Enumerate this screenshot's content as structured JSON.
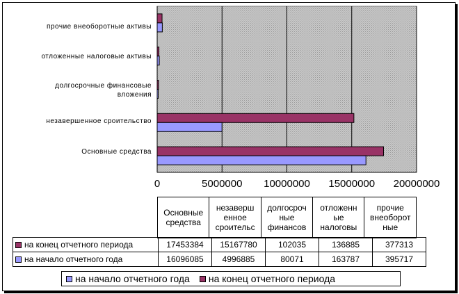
{
  "chart_data": {
    "type": "bar",
    "orientation": "horizontal",
    "categories": [
      "Основные средства",
      "незавершенное сроительство",
      "долгосрочные финансовые вложения",
      "отложенные налоговые активы",
      "прочие внеоборотные активы"
    ],
    "category_labels_display": [
      "Основные средства",
      "незавершенное сроительство",
      "долгосрочные финансовые вложения",
      "отложенные налоговые активы",
      "прочие внеоборотные активы"
    ],
    "table_headers": [
      "Основные средства",
      "незавершенное сроительс тво",
      "долгосрочные финансов ые вложения",
      "отложенные налоговые активы",
      "прочие внеоборотные активы"
    ],
    "series": [
      {
        "name": "на конец отчетного периода",
        "color": "#993366",
        "values": [
          17453384,
          15167780,
          102035,
          136885,
          377313
        ]
      },
      {
        "name": "на начало отчетного года",
        "color": "#9999FF",
        "values": [
          16096085,
          4996885,
          80071,
          163787,
          395717
        ]
      }
    ],
    "xlim": [
      0,
      20000000
    ],
    "xticks": [
      0,
      5000000,
      10000000,
      15000000,
      20000000
    ],
    "xtick_labels": [
      "0",
      "5000000",
      "10000000",
      "15000000",
      "20000000"
    ],
    "grid": true,
    "plot_background": "#c0c0c0",
    "legend_position": "bottom",
    "data_table": true
  },
  "table": {
    "headers": [
      "Основные средства",
      "незаверш енное сроительс",
      "долгосроч ные финансов",
      "отложенн ые налоговы",
      "прочие внеоборот ные"
    ],
    "rows": [
      {
        "name": "на конец отчетного периода",
        "values": [
          "17453384",
          "15167780",
          "102035",
          "136885",
          "377313"
        ]
      },
      {
        "name": "на начало отчетного года",
        "values": [
          "16096085",
          "4996885",
          "80071",
          "163787",
          "395717"
        ]
      }
    ]
  },
  "legend": {
    "items": [
      "на начало отчетного года",
      "на конец отчетного периода"
    ]
  },
  "axis_labels_left": [
    "прочие внеоборотные активы",
    "отложенные налоговые активы",
    "долгосрочные финансовые вложения",
    "незавершенное сроительство",
    "Основные средства"
  ]
}
